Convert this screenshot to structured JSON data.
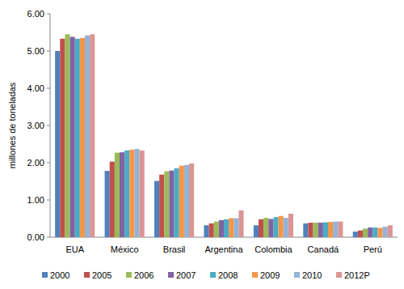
{
  "chart_data": {
    "type": "bar",
    "y_label": "millones de toneladas",
    "categories": [
      "EUA",
      "México",
      "Brasil",
      "Argentina",
      "Colombia",
      "Canadá",
      "Perú"
    ],
    "series": [
      {
        "name": "2000",
        "color": "#4F81BD",
        "values": [
          5.0,
          1.78,
          1.51,
          0.32,
          0.32,
          0.37,
          0.15
        ]
      },
      {
        "name": "2005",
        "color": "#C0504D",
        "values": [
          5.33,
          2.03,
          1.68,
          0.37,
          0.48,
          0.39,
          0.18
        ]
      },
      {
        "name": "2006",
        "color": "#9BBB59",
        "values": [
          5.45,
          2.27,
          1.77,
          0.42,
          0.52,
          0.39,
          0.23
        ]
      },
      {
        "name": "2007",
        "color": "#8064A2",
        "values": [
          5.38,
          2.28,
          1.79,
          0.46,
          0.49,
          0.39,
          0.26
        ]
      },
      {
        "name": "2008",
        "color": "#4BACC6",
        "values": [
          5.33,
          2.33,
          1.85,
          0.48,
          0.54,
          0.4,
          0.26
        ]
      },
      {
        "name": "2009",
        "color": "#F79646",
        "values": [
          5.35,
          2.35,
          1.92,
          0.51,
          0.57,
          0.41,
          0.25
        ]
      },
      {
        "name": "2010",
        "color": "#95B3D7",
        "values": [
          5.42,
          2.37,
          1.94,
          0.51,
          0.52,
          0.42,
          0.28
        ]
      },
      {
        "name": "2012P",
        "color": "#DA9694",
        "values": [
          5.45,
          2.33,
          1.98,
          0.72,
          0.63,
          0.42,
          0.32
        ]
      }
    ],
    "ylim": [
      0,
      6
    ],
    "yticks": [
      {
        "value": 0,
        "label": "0.00"
      },
      {
        "value": 1,
        "label": "1.00"
      },
      {
        "value": 2,
        "label": "2.00"
      },
      {
        "value": 3,
        "label": "3.00"
      },
      {
        "value": 4,
        "label": "4.00"
      },
      {
        "value": 5,
        "label": "5.00"
      },
      {
        "value": 6,
        "label": "6.00"
      }
    ],
    "grid": false,
    "legend": "bottom"
  }
}
